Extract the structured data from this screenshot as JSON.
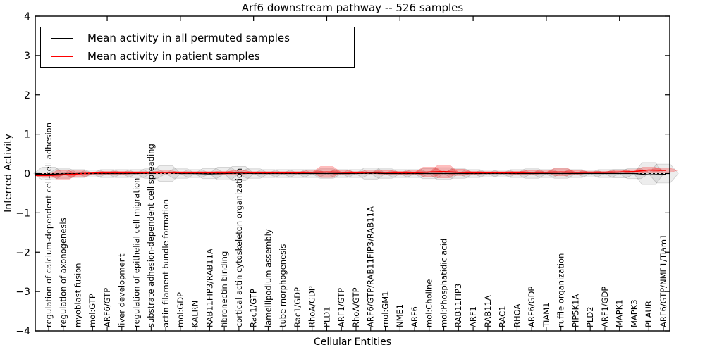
{
  "figure": {
    "title": "Arf6 downstream pathway -- 526 samples",
    "xlabel": "Cellular Entities",
    "ylabel": "Inferred Activity",
    "legend": [
      {
        "label": "Mean activity in all permuted samples",
        "color": "#000000"
      },
      {
        "label": "Mean activity in patient samples",
        "color": "#ff0000"
      }
    ]
  },
  "chart_data": {
    "type": "line",
    "subtype": "violin-band-with-mean-lines",
    "title": "Arf6 downstream pathway -- 526 samples",
    "xlabel": "Cellular Entities",
    "ylabel": "Inferred Activity",
    "ylim": [
      -4,
      4
    ],
    "yticks": [
      -4,
      -3,
      -2,
      -1,
      0,
      1,
      2,
      3,
      4
    ],
    "grid": false,
    "legend_position": "upper left",
    "zero_line": {
      "y": 0,
      "style": "dashed",
      "color": "#000000"
    },
    "categories": [
      "regulation of calcium-dependent cell-cell adhesion",
      "regulation of axonogenesis",
      "myoblast fusion",
      "mol:GTP",
      "ARF6/GTP",
      "liver development",
      "regulation of epithelial cell migration",
      "substrate adhesion-dependent cell spreading",
      "actin filament bundle formation",
      "mol:GDP",
      "KALRN",
      "RAB11FIP3/RAB11A",
      "fibronectin binding",
      "cortical actin cytoskeleton organization",
      "Rac1/GTP",
      "lamellipodium assembly",
      "tube morphogenesis",
      "Rac1/GDP",
      "RhoA/GDP",
      "PLD1",
      "ARF1/GTP",
      "RhoA/GTP",
      "ARF6/GTP/RAB11FIP3/RAB11A",
      "mol:GM1",
      "NME1",
      "ARF6",
      "mol:Choline",
      "mol:Phosphatidic acid",
      "RAB11FIP3",
      "ARF1",
      "RAB11A",
      "RAC1",
      "RHOA",
      "ARF6/GDP",
      "TIAM1",
      "ruffle organization",
      "PIP5K1A",
      "PLD2",
      "ARF1/GDP",
      "MAPK1",
      "MAPK3",
      "PLAUR",
      "ARF6/GTP/NME1/Tiam1"
    ],
    "series": [
      {
        "name": "Mean activity in all permuted samples",
        "color": "#000000",
        "style": "solid",
        "values": [
          -0.02,
          -0.01,
          0,
          0,
          0,
          0,
          0,
          0.01,
          0.03,
          0,
          0,
          -0.01,
          0,
          0.01,
          0,
          0,
          0,
          0,
          0,
          0,
          0,
          0,
          0.01,
          0,
          0,
          0,
          0,
          0,
          0,
          0,
          0,
          0,
          0,
          0,
          0,
          0,
          0,
          0,
          0,
          0,
          0,
          -0.03,
          -0.02
        ]
      },
      {
        "name": "Mean activity in patient samples",
        "color": "#ff0000",
        "style": "solid",
        "values": [
          -0.05,
          -0.03,
          -0.01,
          0.01,
          0.02,
          0.02,
          0.02,
          0.02,
          0.03,
          0.02,
          0.02,
          0.02,
          0.02,
          0.03,
          0.02,
          0.02,
          0.02,
          0.02,
          0.03,
          0.04,
          0.03,
          0.02,
          0.03,
          0.03,
          0.02,
          0.02,
          0.04,
          0.05,
          0.03,
          0.02,
          0.02,
          0.02,
          0.02,
          0.03,
          0.03,
          0.04,
          0.03,
          0.03,
          0.03,
          0.04,
          0.05,
          0.09,
          0.08
        ]
      }
    ],
    "violins": [
      {
        "name": "permuted samples distribution",
        "fill": "rgba(0,0,0,0.07)",
        "edge": "rgba(0,0,0,0.16)",
        "half_heights": [
          0.16,
          0.12,
          0.1,
          0.09,
          0.1,
          0.1,
          0.1,
          0.12,
          0.2,
          0.12,
          0.1,
          0.13,
          0.16,
          0.18,
          0.12,
          0.1,
          0.1,
          0.1,
          0.1,
          0.12,
          0.1,
          0.1,
          0.14,
          0.12,
          0.1,
          0.1,
          0.13,
          0.15,
          0.12,
          0.1,
          0.09,
          0.09,
          0.1,
          0.12,
          0.1,
          0.12,
          0.1,
          0.09,
          0.1,
          0.11,
          0.13,
          0.28,
          0.24
        ]
      },
      {
        "name": "patient samples distribution",
        "fill": "rgba(255,0,0,0.25)",
        "edge": "rgba(255,0,0,0.30)",
        "half_heights": [
          0.05,
          0.11,
          0.08,
          0.03,
          0.04,
          0.04,
          0.03,
          0.03,
          0.04,
          0.03,
          0.03,
          0.03,
          0.04,
          0.05,
          0.03,
          0.03,
          0.03,
          0.03,
          0.04,
          0.14,
          0.06,
          0.03,
          0.04,
          0.05,
          0.04,
          0.05,
          0.12,
          0.16,
          0.08,
          0.04,
          0.03,
          0.03,
          0.04,
          0.05,
          0.04,
          0.1,
          0.05,
          0.03,
          0.03,
          0.04,
          0.05,
          0.07,
          0.06
        ]
      }
    ]
  }
}
